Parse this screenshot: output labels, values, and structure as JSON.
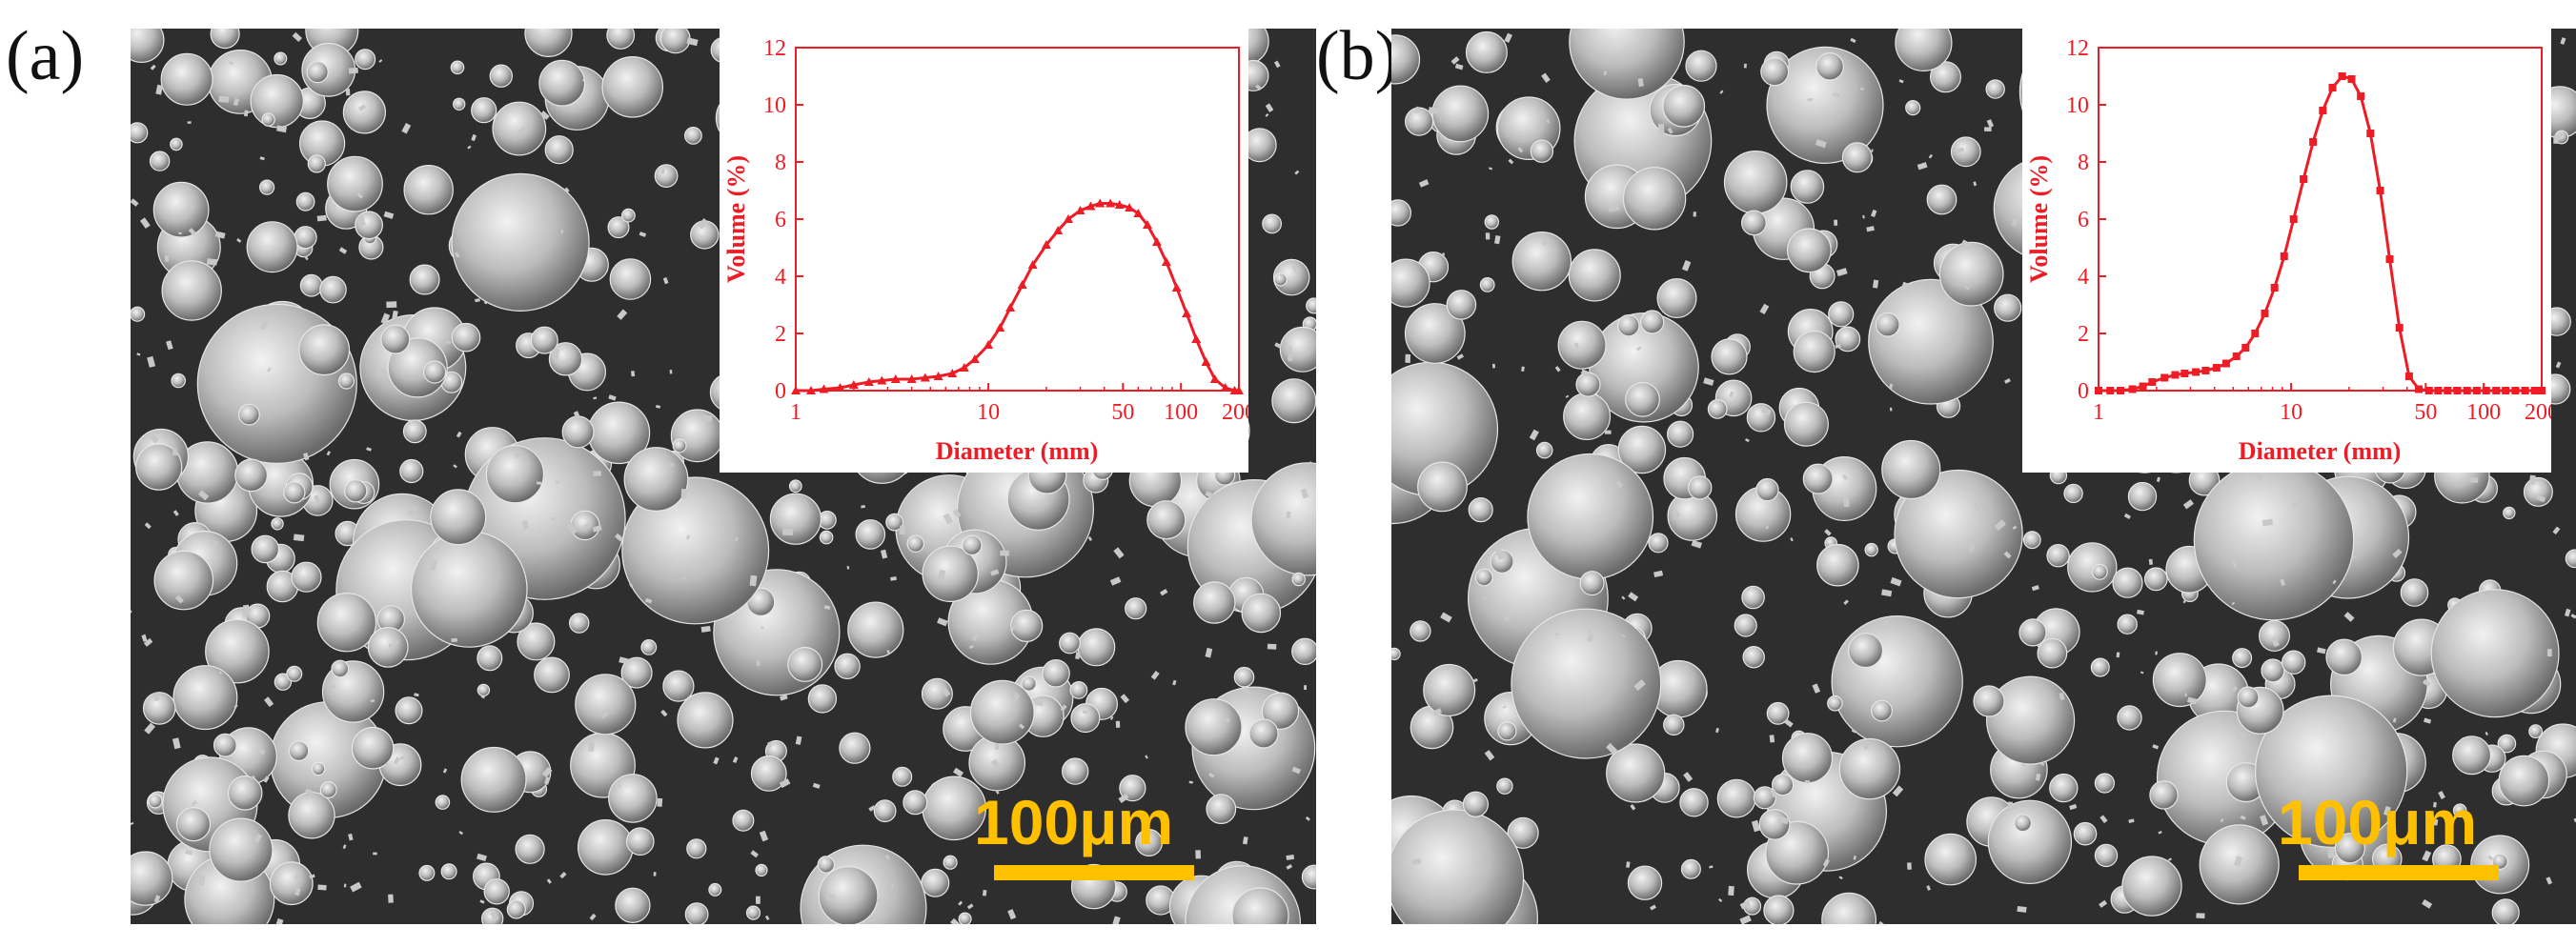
{
  "figure": {
    "panels": [
      {
        "label": "(a)",
        "scale_bar": "100μm"
      },
      {
        "label": "(b)",
        "scale_bar": "100μm"
      }
    ]
  },
  "chart_data": [
    {
      "type": "line",
      "panel": "(a)",
      "xlabel": "Diameter (mm)",
      "ylabel": "Volume (%)",
      "xscale": "log",
      "xlim": [
        1,
        200
      ],
      "ylim": [
        0,
        12
      ],
      "xticks": [
        "1",
        "10",
        "50",
        "100",
        "200"
      ],
      "yticks": [
        "0",
        "2",
        "4",
        "6",
        "8",
        "10",
        "12"
      ],
      "color": "#ee1c25",
      "marker": "triangle",
      "grid": false,
      "series": [
        {
          "x": [
            1,
            1.2,
            1.4,
            1.7,
            2,
            2.4,
            2.8,
            3.3,
            4,
            4.7,
            5.5,
            6.5,
            7.5,
            8.5,
            10,
            11.5,
            13,
            15,
            17,
            20,
            23,
            26,
            30,
            34,
            38,
            43,
            48,
            54,
            60,
            67,
            75,
            84,
            95,
            107,
            120,
            135,
            150,
            170,
            190,
            200
          ],
          "y": [
            0,
            0,
            0.05,
            0.1,
            0.2,
            0.3,
            0.35,
            0.4,
            0.4,
            0.45,
            0.5,
            0.6,
            0.8,
            1.1,
            1.6,
            2.2,
            2.9,
            3.7,
            4.4,
            5.1,
            5.6,
            6.0,
            6.3,
            6.45,
            6.55,
            6.55,
            6.5,
            6.4,
            6.2,
            5.8,
            5.2,
            4.5,
            3.6,
            2.7,
            1.8,
            1.0,
            0.4,
            0.1,
            0,
            0
          ]
        }
      ]
    },
    {
      "type": "line",
      "panel": "(b)",
      "xlabel": "Diameter (mm)",
      "ylabel": "Volume (%)",
      "xscale": "log",
      "xlim": [
        1,
        200
      ],
      "ylim": [
        0,
        12
      ],
      "xticks": [
        "1",
        "10",
        "50",
        "100",
        "200"
      ],
      "yticks": [
        "0",
        "2",
        "4",
        "6",
        "8",
        "10",
        "12"
      ],
      "color": "#ee1c25",
      "marker": "square",
      "grid": false,
      "series": [
        {
          "x": [
            1,
            1.15,
            1.3,
            1.5,
            1.7,
            1.9,
            2.2,
            2.5,
            2.8,
            3.2,
            3.6,
            4.1,
            4.6,
            5.2,
            5.8,
            6.5,
            7.3,
            8.2,
            9.2,
            10.3,
            11.6,
            13,
            14.6,
            16.4,
            18.4,
            20.6,
            23,
            25.8,
            29,
            32.5,
            36.5,
            41,
            46,
            52,
            58,
            65,
            73,
            82,
            92,
            103,
            116,
            130,
            146,
            164,
            184,
            200
          ],
          "y": [
            0,
            0,
            0,
            0.05,
            0.15,
            0.3,
            0.45,
            0.55,
            0.6,
            0.65,
            0.7,
            0.8,
            0.95,
            1.2,
            1.5,
            2.0,
            2.7,
            3.6,
            4.7,
            6.0,
            7.4,
            8.7,
            9.8,
            10.6,
            11.0,
            10.9,
            10.3,
            9.0,
            7.0,
            4.6,
            2.2,
            0.5,
            0.05,
            0,
            0,
            0,
            0,
            0,
            0,
            0,
            0,
            0,
            0,
            0,
            0,
            0
          ]
        }
      ]
    }
  ]
}
